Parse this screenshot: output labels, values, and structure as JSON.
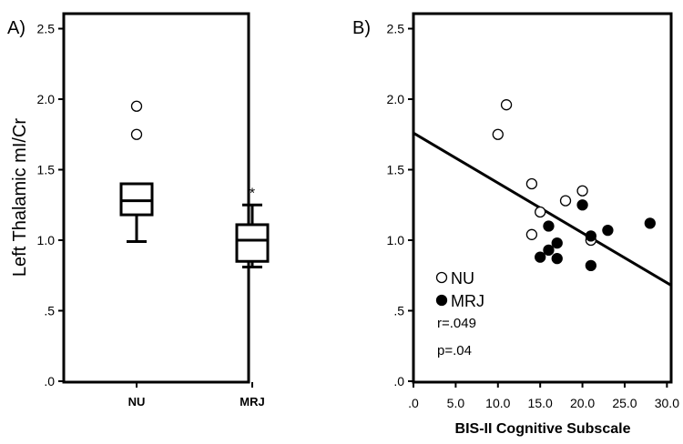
{
  "chart_data": [
    {
      "type": "box",
      "panel_label": "A)",
      "ylabel": "Left Thalamic mI/Cr",
      "ylim": [
        0,
        2.6
      ],
      "yticks": [
        {
          "value": 0,
          "label": ".0"
        },
        {
          "value": 0.5,
          "label": ".5"
        },
        {
          "value": 1.0,
          "label": "1.0"
        },
        {
          "value": 1.5,
          "label": "1.5"
        },
        {
          "value": 2.0,
          "label": "2.0"
        },
        {
          "value": 2.5,
          "label": "2.5"
        }
      ],
      "categories": [
        "NU",
        "MRJ"
      ],
      "boxes": [
        {
          "category": "NU",
          "whisker_low": 0.99,
          "q1": 1.18,
          "median": 1.28,
          "q3": 1.4,
          "whisker_high": 1.4,
          "outliers": [
            1.75,
            1.95
          ],
          "extremes": []
        },
        {
          "category": "MRJ",
          "whisker_low": 0.81,
          "q1": 0.85,
          "median": 1.0,
          "q3": 1.11,
          "whisker_high": 1.25,
          "outliers": [],
          "extremes": [
            1.37
          ]
        }
      ],
      "grid": false
    },
    {
      "type": "scatter",
      "panel_label": "B)",
      "xlabel": "BIS-II Cognitive Subscale",
      "xlim": [
        0,
        30.5
      ],
      "ylim": [
        0,
        2.6
      ],
      "xticks": [
        {
          "value": 0,
          "label": ".0"
        },
        {
          "value": 5,
          "label": "5.0"
        },
        {
          "value": 10,
          "label": "10.0"
        },
        {
          "value": 15,
          "label": "15.0"
        },
        {
          "value": 20,
          "label": "20.0"
        },
        {
          "value": 25,
          "label": "25.0"
        },
        {
          "value": 30,
          "label": "30.0"
        }
      ],
      "yticks": [
        {
          "value": 0,
          "label": ".0"
        },
        {
          "value": 0.5,
          "label": ".5"
        },
        {
          "value": 1.0,
          "label": "1.0"
        },
        {
          "value": 1.5,
          "label": "1.5"
        },
        {
          "value": 2.0,
          "label": "2.0"
        },
        {
          "value": 2.5,
          "label": "2.5"
        }
      ],
      "series": [
        {
          "name": "NU",
          "marker": "open-circle",
          "points": [
            [
              11,
              1.96
            ],
            [
              10,
              1.75
            ],
            [
              14,
              1.4
            ],
            [
              15,
              1.2
            ],
            [
              18,
              1.28
            ],
            [
              20,
              1.35
            ],
            [
              14,
              1.04
            ],
            [
              21,
              1.0
            ]
          ]
        },
        {
          "name": "MRJ",
          "marker": "filled-circle",
          "points": [
            [
              20,
              1.25
            ],
            [
              16,
              1.1
            ],
            [
              21,
              1.03
            ],
            [
              23,
              1.07
            ],
            [
              28,
              1.12
            ],
            [
              17,
              0.98
            ],
            [
              16,
              0.93
            ],
            [
              15,
              0.88
            ],
            [
              17,
              0.87
            ],
            [
              21,
              0.82
            ]
          ]
        }
      ],
      "regression": {
        "x": [
          0,
          30.5
        ],
        "y": [
          1.76,
          0.68
        ]
      },
      "legend": {
        "position": "bottom-left",
        "items": [
          {
            "label": "NU",
            "marker": "open-circle"
          },
          {
            "label": "MRJ",
            "marker": "filled-circle"
          }
        ]
      },
      "annotations": [
        "r=.049",
        "p=.04"
      ],
      "grid": false
    }
  ]
}
